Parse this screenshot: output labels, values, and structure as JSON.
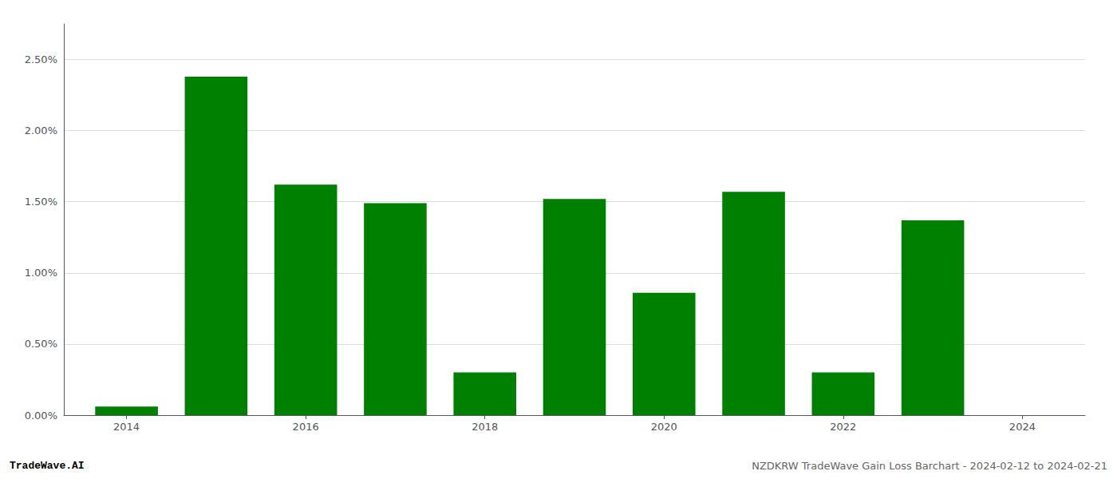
{
  "chart_data": {
    "type": "bar",
    "x": [
      2014,
      2015,
      2016,
      2017,
      2018,
      2019,
      2020,
      2021,
      2022,
      2023,
      2024
    ],
    "values": [
      0.0006,
      0.0238,
      0.0162,
      0.0149,
      0.003,
      0.0152,
      0.0086,
      0.0157,
      0.003,
      0.0137,
      0.0
    ],
    "color": "#008000",
    "xlim": [
      2013.3,
      2024.7
    ],
    "xticks": [
      2014,
      2016,
      2018,
      2020,
      2022,
      2024
    ],
    "ylim": [
      0,
      0.0275
    ],
    "yticks": [
      {
        "value": 0.0,
        "label": "0.00%"
      },
      {
        "value": 0.005,
        "label": "0.50%"
      },
      {
        "value": 0.01,
        "label": "1.00%"
      },
      {
        "value": 0.015,
        "label": "1.50%"
      },
      {
        "value": 0.02,
        "label": "2.00%"
      },
      {
        "value": 0.025,
        "label": "2.50%"
      }
    ],
    "grid": true,
    "annotations": [
      "TradeWave.AI",
      "NZDKRW TradeWave Gain Loss Barchart - 2024-02-12 to 2024-02-21"
    ]
  }
}
